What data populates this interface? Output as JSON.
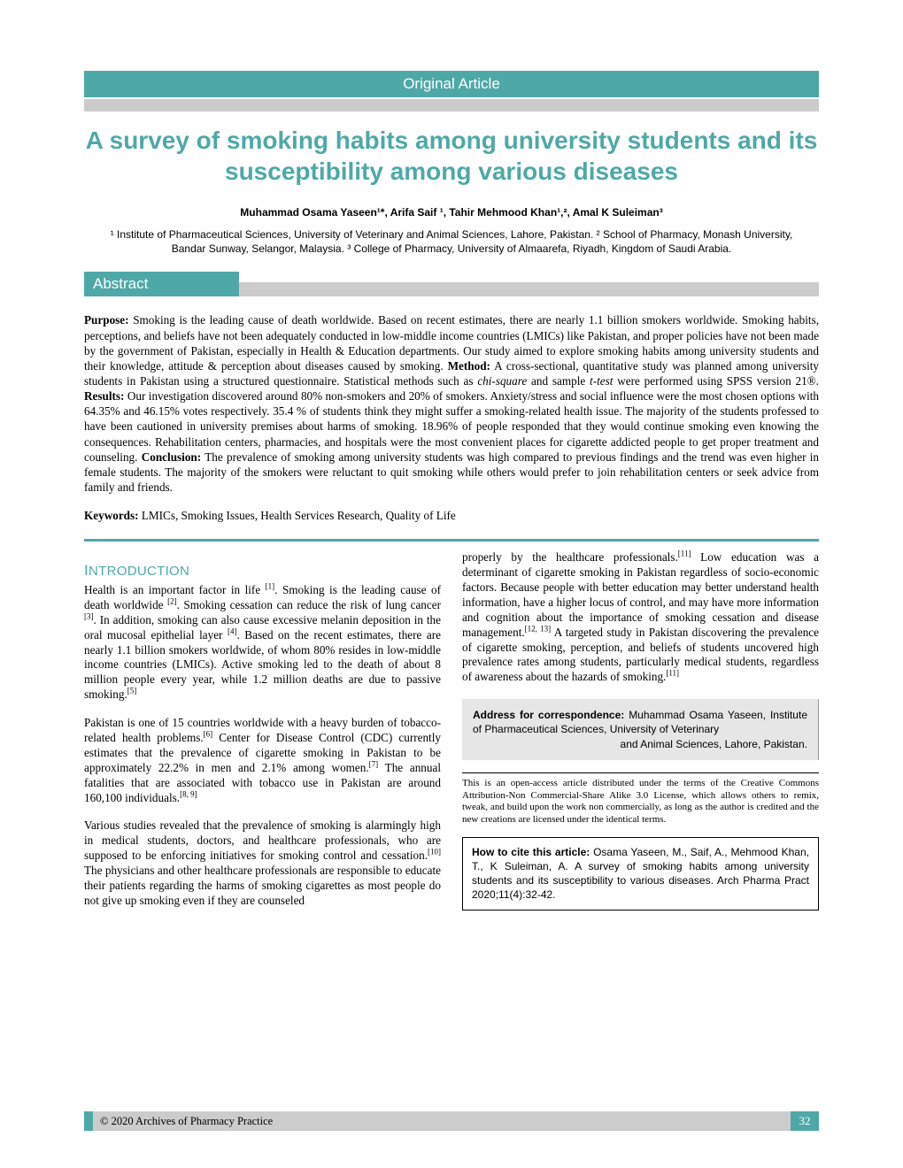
{
  "article_type": "Original Article",
  "title": "A survey of smoking habits among university students and its susceptibility among various diseases",
  "authors": "Muhammad Osama Yaseen¹*, Arifa Saif ¹, Tahir Mehmood Khan¹,², Amal K Suleiman³",
  "affiliations": "¹ Institute of Pharmaceutical Sciences, University of Veterinary and Animal Sciences, Lahore, Pakistan. ² School of Pharmacy, Monash University, Bandar Sunway, Selangor, Malaysia. ³ College of Pharmacy, University of Almaarefa, Riyadh, Kingdom of Saudi Arabia.",
  "abstract_label": "Abstract",
  "abstract_html": "<b>Purpose:</b> Smoking is the leading cause of death worldwide. Based on recent estimates, there are nearly 1.1 billion smokers worldwide. Smoking habits, perceptions, and beliefs have not been adequately conducted in low-middle income countries (LMICs) like Pakistan, and proper policies have not been made by the government of Pakistan, especially in Health & Education departments. Our study aimed to explore smoking habits among university students and their knowledge, attitude & perception about diseases caused by smoking. <b>Method:</b> A cross-sectional, quantitative study was planned among university students in Pakistan using a structured questionnaire. Statistical methods such as <i>chi-square</i> and sample <i>t-test</i> were performed using SPSS version 21®. <b>Results:</b> Our investigation discovered around 80% non-smokers and 20% of smokers. Anxiety/stress and social influence were the most chosen options with 64.35% and 46.15% votes respectively. 35.4 % of students think they might suffer a smoking-related health issue. The majority of the students professed to have been cautioned in university premises about harms of smoking. 18.96% of people responded that they would continue smoking even knowing the consequences. Rehabilitation centers, pharmacies, and hospitals were the most convenient places for cigarette addicted people to get proper treatment and counseling. <b>Conclusion:</b> The prevalence of smoking among university students was high compared to previous findings and the trend was even higher in female students. The majority of the smokers were reluctant to quit smoking while others would prefer to join rehabilitation centers or seek advice from family and friends.",
  "keywords_label": "Keywords:",
  "keywords": "LMICs, Smoking Issues, Health Services Research, Quality of Life",
  "intro_heading": "INTRODUCTION",
  "col1_p1": "Health is an important factor in life <sup>[1]</sup>. Smoking is the leading cause of death worldwide <sup>[2]</sup>. Smoking cessation can reduce the risk of lung cancer <sup>[3]</sup>. In addition, smoking can also cause excessive melanin deposition in the oral mucosal epithelial layer <sup>[4]</sup>. Based on the recent estimates, there are nearly 1.1 billion smokers worldwide, of whom 80% resides in low-middle income countries (LMICs). Active smoking led to the death of about 8 million people every year, while 1.2 million deaths are due to passive smoking.<sup>[5]</sup>",
  "col1_p2": "Pakistan is one of 15 countries worldwide with a heavy burden of tobacco-related health problems.<sup>[6]</sup> Center for Disease Control (CDC) currently estimates that the prevalence of cigarette smoking in Pakistan to be approximately 22.2% in men and 2.1% among women.<sup>[7]</sup> The annual fatalities that are associated with tobacco use in Pakistan are around 160,100 individuals.<sup>[8, 9]</sup>",
  "col1_p3": "Various studies revealed that the prevalence of smoking is alarmingly high in medical students, doctors, and healthcare professionals, who are supposed to be enforcing initiatives for smoking control and cessation.<sup>[10]</sup> The physicians and other healthcare professionals are responsible to educate their patients regarding the harms of smoking cigarettes as most people do not give up smoking even if they are counseled",
  "col2_p1": "properly by the healthcare professionals.<sup>[11]</sup> Low education was a determinant of cigarette smoking in Pakistan regardless of socio-economic factors. Because people with better education may better understand health information, have a higher locus of control, and may have more information and cognition about the importance of smoking cessation and disease management.<sup>[12, 13]</sup> A targeted study in Pakistan discovering the prevalence of cigarette smoking, perception, and beliefs of students uncovered high prevalence rates among students, particularly medical students, regardless of awareness about the hazards of smoking.<sup>[11]</sup>",
  "correspondence_html": "<b>Address for correspondence:</b> Muhammad Osama Yaseen, Institute of Pharmaceutical Sciences, University of Veterinary <span class=\"right\">and Animal Sciences, Lahore, Pakistan.</span>",
  "license": "This is an open-access article distributed under the terms of the Creative Commons Attribution-Non Commercial-Share Alike 3.0 License, which allows others to remix, tweak, and build upon the work non commercially, as long as the author is credited and the new creations are licensed under the identical terms.",
  "citation_html": "<b>How to cite this article:</b> Osama Yaseen, M., Saif, A., Mehmood Khan, T., K Suleiman, A. A survey of smoking habits among university students and its susceptibility to various diseases. Arch Pharma Pract 2020;11(4):32-42.",
  "footer_copyright": "© 2020 Archives of Pharmacy Practice",
  "page_number": "32",
  "colors": {
    "teal": "#4fa8a8",
    "gray": "#cccccc",
    "box_gray": "#e6e6e6"
  }
}
